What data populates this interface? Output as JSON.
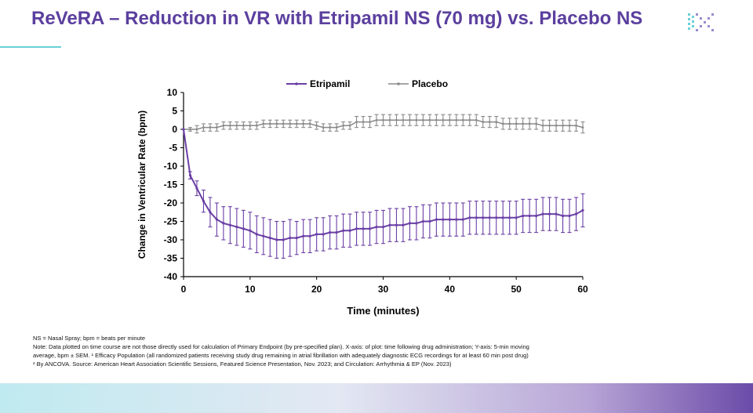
{
  "header": {
    "title": "ReVeRA – Reduction in VR with Etripamil NS (70 mg) vs. Placebo NS",
    "logo_icon": "company-logo-icon",
    "accent_color": "#5b3f9e"
  },
  "chart_data": {
    "type": "line",
    "title": "",
    "xlabel": "Time (minutes)",
    "ylabel": "Change in Ventricular Rate (bpm)",
    "xlim": [
      0,
      60
    ],
    "ylim": [
      -40,
      10
    ],
    "xticks": [
      "0",
      "10",
      "20",
      "30",
      "40",
      "50",
      "60"
    ],
    "yticks": [
      "10",
      "5",
      "0",
      "-5",
      "-10",
      "-15",
      "-20",
      "-25",
      "-30",
      "-35",
      "-40"
    ],
    "legend_position": "top-center",
    "grid": false,
    "series": [
      {
        "name": "Etripamil",
        "color": "#6a3fa5",
        "x": [
          0,
          1,
          2,
          3,
          4,
          5,
          6,
          7,
          8,
          9,
          10,
          11,
          12,
          13,
          14,
          15,
          16,
          17,
          18,
          19,
          20,
          21,
          22,
          23,
          24,
          25,
          26,
          27,
          28,
          29,
          30,
          31,
          32,
          33,
          34,
          35,
          36,
          37,
          38,
          39,
          40,
          41,
          42,
          43,
          44,
          45,
          46,
          47,
          48,
          49,
          50,
          51,
          52,
          53,
          54,
          55,
          56,
          57,
          58,
          59,
          60
        ],
        "y": [
          0,
          -12.5,
          -16,
          -19.5,
          -22.5,
          -24.5,
          -25.5,
          -26,
          -26.5,
          -27,
          -27.5,
          -28.5,
          -29,
          -29.5,
          -30,
          -30,
          -29.5,
          -29.5,
          -29,
          -29,
          -28.5,
          -28.5,
          -28,
          -28,
          -27.5,
          -27.5,
          -27,
          -27,
          -27,
          -26.5,
          -26.5,
          -26,
          -26,
          -26,
          -25.5,
          -25.5,
          -25,
          -25,
          -24.5,
          -24.5,
          -24.5,
          -24.5,
          -24.5,
          -24,
          -24,
          -24,
          -24,
          -24,
          -24,
          -24,
          -24,
          -23.5,
          -23.5,
          -23.5,
          -23,
          -23,
          -23,
          -23.5,
          -23.5,
          -23,
          -22
        ],
        "err": [
          0,
          1,
          2,
          3,
          4,
          4.5,
          4.5,
          5,
          5,
          5,
          5,
          5,
          5,
          5,
          5,
          5,
          5,
          4.5,
          4.5,
          4.5,
          4.5,
          4.5,
          4.5,
          4.5,
          4.5,
          4.5,
          4.5,
          4.5,
          4.5,
          4.5,
          4.5,
          4.5,
          4.5,
          4.5,
          4.5,
          4.5,
          4.5,
          4.5,
          4.5,
          4.5,
          4.5,
          4.5,
          4.5,
          4.5,
          4.5,
          4.5,
          4.5,
          4.5,
          4.5,
          4.5,
          4.5,
          4.5,
          4.5,
          4.5,
          4.5,
          4.5,
          4.5,
          4.5,
          4.5,
          4.5,
          4.5
        ]
      },
      {
        "name": "Placebo",
        "color": "#8a8a8a",
        "x": [
          0,
          1,
          2,
          3,
          4,
          5,
          6,
          7,
          8,
          9,
          10,
          11,
          12,
          13,
          14,
          15,
          16,
          17,
          18,
          19,
          20,
          21,
          22,
          23,
          24,
          25,
          26,
          27,
          28,
          29,
          30,
          31,
          32,
          33,
          34,
          35,
          36,
          37,
          38,
          39,
          40,
          41,
          42,
          43,
          44,
          45,
          46,
          47,
          48,
          49,
          50,
          51,
          52,
          53,
          54,
          55,
          56,
          57,
          58,
          59,
          60
        ],
        "y": [
          0,
          0,
          0,
          0.5,
          0.5,
          0.5,
          1,
          1,
          1,
          1,
          1,
          1,
          1.5,
          1.5,
          1.5,
          1.5,
          1.5,
          1.5,
          1.5,
          1.5,
          1,
          0.5,
          0.5,
          0.5,
          1,
          1,
          2,
          2,
          2,
          2.5,
          2.5,
          2.5,
          2.5,
          2.5,
          2.5,
          2.5,
          2.5,
          2.5,
          2.5,
          2.5,
          2.5,
          2.5,
          2.5,
          2.5,
          2.5,
          2,
          2,
          2,
          1.5,
          1.5,
          1.5,
          1.5,
          1.5,
          1.5,
          1,
          1,
          1,
          1,
          1,
          1,
          0.5
        ],
        "err": [
          0,
          0.5,
          1,
          1,
          1,
          1,
          1,
          1,
          1,
          1,
          1,
          1,
          1,
          1,
          1,
          1,
          1,
          1,
          1,
          1,
          1,
          1,
          1,
          1,
          1,
          1,
          1.5,
          1.5,
          1.5,
          1.5,
          1.5,
          1.5,
          1.5,
          1.5,
          1.5,
          1.5,
          1.5,
          1.5,
          1.5,
          1.5,
          1.5,
          1.5,
          1.5,
          1.5,
          1.5,
          1.5,
          1.5,
          1.5,
          1.5,
          1.5,
          1.5,
          1.5,
          1.5,
          1.5,
          1.5,
          1.5,
          1.5,
          1.5,
          1.5,
          1.5,
          1.5
        ]
      }
    ]
  },
  "footnotes": {
    "line1": "NS = Nasal Spray; bpm = beats per minute",
    "line2": "Note: Data plotted on time course are not those directly used for calculation of Primary Endpoint (by pre-specified plan). X-axis: of plot: time following drug administration; Y-axis: 5-min moving",
    "line3": "average, bpm ± SEM. ¹ Efficacy Population (all randomized patients receiving study drug remaining in atrial fibrillation with adequately diagnostic ECG recordings for at least 60 min post drug)",
    "line4": "² By ANCOVA. Source: American Heart Association Scientific Sessions, Featured Science Presentation, Nov. 2023; and Circulation: Arrhythmia & EP (Nov. 2023)"
  }
}
